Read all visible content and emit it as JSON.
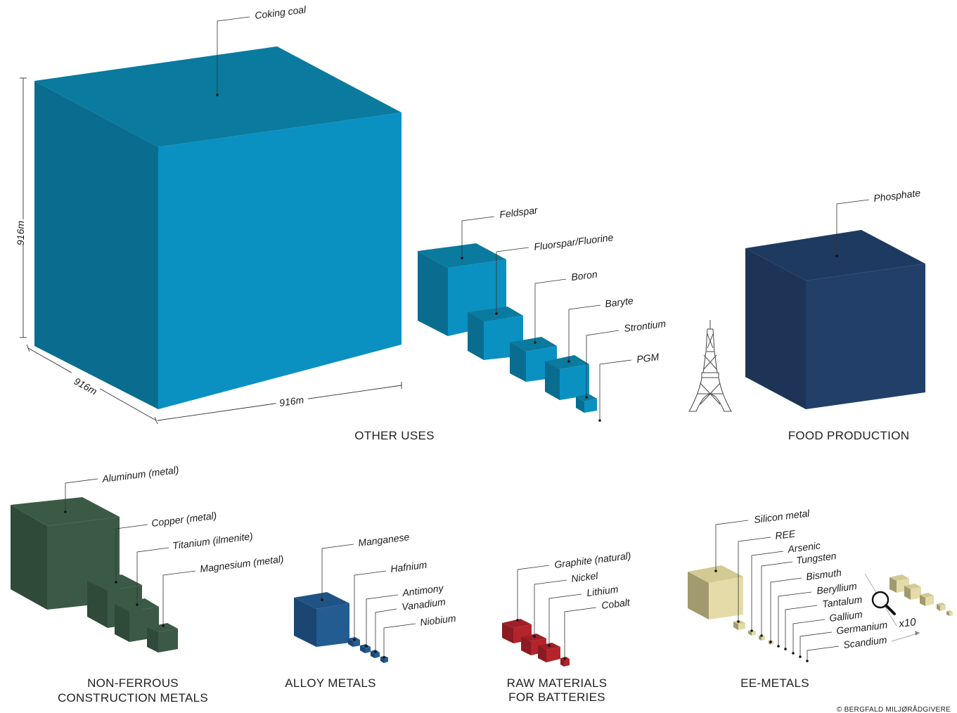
{
  "dimension": {
    "height": "916m",
    "depth": "916m",
    "width": "916m"
  },
  "groups": {
    "other_uses": "OTHER USES",
    "food_production": "FOOD PRODUCTION",
    "non_ferrous_line1": "NON-FERROUS",
    "non_ferrous_line2": "CONSTRUCTION METALS",
    "alloy_metals": "ALLOY METALS",
    "raw_batteries_line1": "RAW MATERIALS",
    "raw_batteries_line2": "FOR BATTERIES",
    "ee_metals": "EE-METALS"
  },
  "materials": {
    "coking_coal": "Coking coal",
    "feldspar": "Feldspar",
    "fluorspar": "Fluorspar/Fluorine",
    "boron": "Boron",
    "baryte": "Baryte",
    "strontium": "Strontium",
    "pgm": "PGM",
    "phosphate": "Phosphate",
    "aluminum": "Aluminum (metal)",
    "copper": "Copper (metal)",
    "titanium": "Titanium (ilmenite)",
    "magnesium": "Magnesium (metal)",
    "manganese": "Manganese",
    "hafnium": "Hafnium",
    "antimony": "Antimony",
    "vanadium": "Vanadium",
    "niobium": "Niobium",
    "graphite": "Graphite (natural)",
    "nickel": "Nickel",
    "lithium": "Lithium",
    "cobalt": "Cobalt",
    "silicon": "Silicon metal",
    "ree": "REE",
    "arsenic": "Arsenic",
    "tungsten": "Tungsten",
    "bismuth": "Bismuth",
    "beryllium": "Beryllium",
    "tantalum": "Tantalum",
    "gallium": "Gallium",
    "germanium": "Germanium",
    "scandium": "Scandium"
  },
  "magnifier": {
    "icon": "magnifier-icon",
    "factor": "x10"
  },
  "reference_icon": "eiffel-tower-icon",
  "copyright": "© BERGFALD MILJØRÅDGIVERE",
  "colors": {
    "other_uses": "#0a91c2",
    "food": "#223f6a",
    "construction": "#3b5a45",
    "alloy": "#225c91",
    "batteries": "#b5232c",
    "ee": "#e4dba8"
  }
}
